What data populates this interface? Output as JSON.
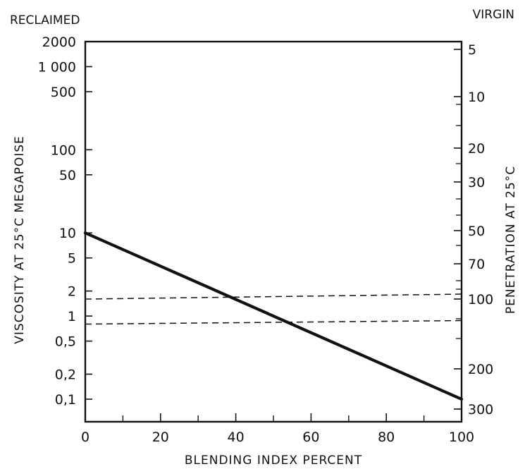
{
  "chart_data": {
    "type": "line",
    "title": "",
    "corner_labels": {
      "left": "RECLAIMED",
      "right": "VIRGIN"
    },
    "xlabel": "BLENDING INDEX PERCENT",
    "ylabel_left": "VISCOSITY AT 25°C MEGAPOISE",
    "ylabel_right": "PENETRATION AT 25°C",
    "xlim": [
      0,
      100
    ],
    "x_ticks": [
      0,
      20,
      40,
      60,
      80,
      100
    ],
    "x_tick_labels": [
      "0",
      "20",
      "40",
      "60",
      "80",
      "100"
    ],
    "x_minor_ticks": [
      10,
      30,
      50,
      70,
      90
    ],
    "y_left_scale": "log",
    "ylim_left": [
      0.05,
      2000
    ],
    "y_left_ticks": [
      2000,
      1000,
      500,
      100,
      50,
      10,
      5,
      2,
      1,
      0.5,
      0.2,
      0.1
    ],
    "y_left_tick_labels": [
      "2000",
      "1 000",
      "500",
      "100",
      "50",
      "10",
      "5",
      "2",
      "1",
      "0,5",
      "0,2",
      "0,1"
    ],
    "y_right_ticks": [
      5,
      10,
      20,
      30,
      50,
      70,
      100,
      200,
      300
    ],
    "y_right_tick_labels": [
      "5",
      "10",
      "20",
      "30",
      "50",
      "70",
      "100",
      "200",
      "300"
    ],
    "series": [
      {
        "x": [
          0,
          100
        ],
        "y": [
          10,
          0.1
        ],
        "style": "solid-thick"
      }
    ],
    "reference_lines": [
      {
        "y_left": 1.6,
        "style": "dashed"
      },
      {
        "y_left": 0.8,
        "style": "dashed"
      }
    ],
    "grid": false,
    "colors": {
      "line": "#111111",
      "background": "#ffffff"
    }
  }
}
